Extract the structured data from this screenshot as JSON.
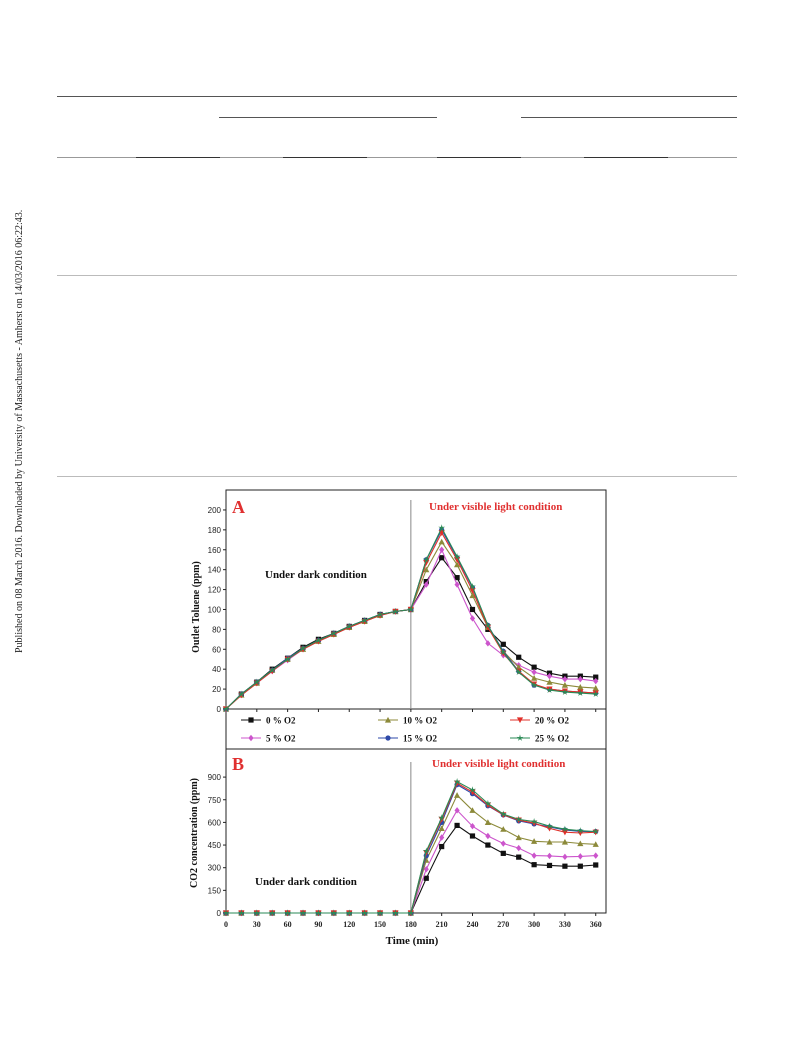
{
  "sidebar_note": "Published on 08 March 2016. Downloaded by University of Massachusetts - Amherst on 14/03/2016 06:22:43.",
  "panel_a": {
    "letter": "A",
    "dark_label": "Under dark condition",
    "light_label": "Under visible light condition",
    "ylabel": "Outlet Toluene (ppm)"
  },
  "panel_b": {
    "letter": "B",
    "dark_label": "Under dark condition",
    "light_label": "Under visible light condition",
    "ylabel": "CO2 concentration (ppm)",
    "xlabel": "Time (min)"
  },
  "legend": [
    "0 % O2",
    "5 % O2",
    "10 % O2",
    "15 % O2",
    "20 % O2",
    "25 % O2"
  ],
  "colors": {
    "s0": "#111111",
    "s5": "#cc55cc",
    "s10": "#8c8a3a",
    "s15": "#2e49a8",
    "s20": "#e0302a",
    "s25": "#2a8a55",
    "accent": "#e03030"
  },
  "chart_data": [
    {
      "type": "line",
      "panel": "A",
      "title": "",
      "xlabel": "",
      "ylabel": "Outlet Toluene (ppm)",
      "xlim": [
        0,
        370
      ],
      "ylim": [
        0,
        210
      ],
      "yticks": [
        0,
        20,
        40,
        60,
        80,
        100,
        120,
        140,
        160,
        180,
        200
      ],
      "light_on_at": 180,
      "x": [
        0,
        15,
        30,
        45,
        60,
        75,
        90,
        105,
        120,
        135,
        150,
        165,
        180,
        195,
        210,
        225,
        240,
        255,
        270,
        285,
        300,
        315,
        330,
        345,
        360
      ],
      "series": [
        {
          "name": "0 % O2",
          "marker": "square",
          "values": [
            0,
            15,
            27,
            40,
            51,
            62,
            70,
            76,
            83,
            89,
            95,
            98,
            100,
            128,
            152,
            132,
            100,
            80,
            65,
            52,
            42,
            36,
            33,
            33,
            32
          ]
        },
        {
          "name": "5 % O2",
          "marker": "diamond",
          "values": [
            0,
            14,
            26,
            38,
            49,
            60,
            68,
            75,
            82,
            88,
            94,
            98,
            100,
            125,
            160,
            125,
            91,
            66,
            54,
            44,
            37,
            33,
            30,
            30,
            28
          ]
        },
        {
          "name": "10 % O2",
          "marker": "triangle-up",
          "values": [
            0,
            14,
            26,
            39,
            50,
            60,
            68,
            75,
            82,
            88,
            94,
            98,
            100,
            140,
            168,
            145,
            114,
            82,
            58,
            42,
            31,
            27,
            24,
            22,
            21
          ]
        },
        {
          "name": "15 % O2",
          "marker": "circle",
          "values": [
            0,
            15,
            27,
            39,
            51,
            61,
            69,
            76,
            83,
            89,
            95,
            98,
            100,
            150,
            180,
            152,
            122,
            84,
            58,
            38,
            24,
            20,
            18,
            17,
            16
          ]
        },
        {
          "name": "20 % O2",
          "marker": "triangle-down",
          "values": [
            0,
            14,
            26,
            38,
            50,
            60,
            68,
            75,
            82,
            88,
            94,
            98,
            100,
            147,
            177,
            150,
            119,
            82,
            56,
            38,
            25,
            20,
            18,
            17,
            16
          ]
        },
        {
          "name": "25 % O2",
          "marker": "star",
          "values": [
            0,
            15,
            27,
            39,
            50,
            61,
            69,
            76,
            83,
            89,
            95,
            98,
            100,
            150,
            182,
            153,
            123,
            84,
            57,
            37,
            24,
            19,
            17,
            16,
            15
          ]
        }
      ]
    },
    {
      "type": "line",
      "panel": "B",
      "title": "",
      "xlabel": "Time (min)",
      "ylabel": "CO2 concentration (ppm)",
      "xlim": [
        0,
        370
      ],
      "ylim": [
        0,
        1000
      ],
      "xticks": [
        0,
        30,
        60,
        90,
        120,
        150,
        180,
        210,
        240,
        270,
        300,
        330,
        360
      ],
      "yticks": [
        0,
        150,
        300,
        450,
        600,
        750,
        900
      ],
      "light_on_at": 180,
      "x": [
        0,
        15,
        30,
        45,
        60,
        75,
        90,
        105,
        120,
        135,
        150,
        165,
        180,
        195,
        210,
        225,
        240,
        255,
        270,
        285,
        300,
        315,
        330,
        345,
        360
      ],
      "series": [
        {
          "name": "0 % O2",
          "marker": "square",
          "values": [
            0,
            0,
            0,
            0,
            0,
            0,
            0,
            0,
            0,
            0,
            0,
            0,
            0,
            230,
            440,
            580,
            510,
            450,
            395,
            370,
            320,
            315,
            310,
            310,
            318
          ]
        },
        {
          "name": "5 % O2",
          "marker": "diamond",
          "values": [
            0,
            0,
            0,
            0,
            0,
            0,
            0,
            0,
            0,
            0,
            0,
            0,
            0,
            290,
            500,
            680,
            575,
            510,
            460,
            430,
            380,
            378,
            372,
            375,
            380
          ]
        },
        {
          "name": "10 % O2",
          "marker": "triangle-up",
          "values": [
            0,
            0,
            0,
            0,
            0,
            0,
            0,
            0,
            0,
            0,
            0,
            0,
            0,
            350,
            560,
            780,
            680,
            600,
            555,
            500,
            475,
            470,
            470,
            460,
            455
          ]
        },
        {
          "name": "15 % O2",
          "marker": "circle",
          "values": [
            0,
            0,
            0,
            0,
            0,
            0,
            0,
            0,
            0,
            0,
            0,
            0,
            0,
            380,
            600,
            850,
            790,
            710,
            650,
            610,
            590,
            570,
            550,
            540,
            540
          ]
        },
        {
          "name": "20 % O2",
          "marker": "triangle-down",
          "values": [
            0,
            0,
            0,
            0,
            0,
            0,
            0,
            0,
            0,
            0,
            0,
            0,
            0,
            400,
            620,
            860,
            800,
            715,
            650,
            615,
            595,
            560,
            535,
            530,
            535
          ]
        },
        {
          "name": "25 % O2",
          "marker": "star",
          "values": [
            0,
            0,
            0,
            0,
            0,
            0,
            0,
            0,
            0,
            0,
            0,
            0,
            0,
            410,
            630,
            870,
            815,
            725,
            655,
            620,
            605,
            575,
            555,
            545,
            540
          ]
        }
      ]
    }
  ]
}
